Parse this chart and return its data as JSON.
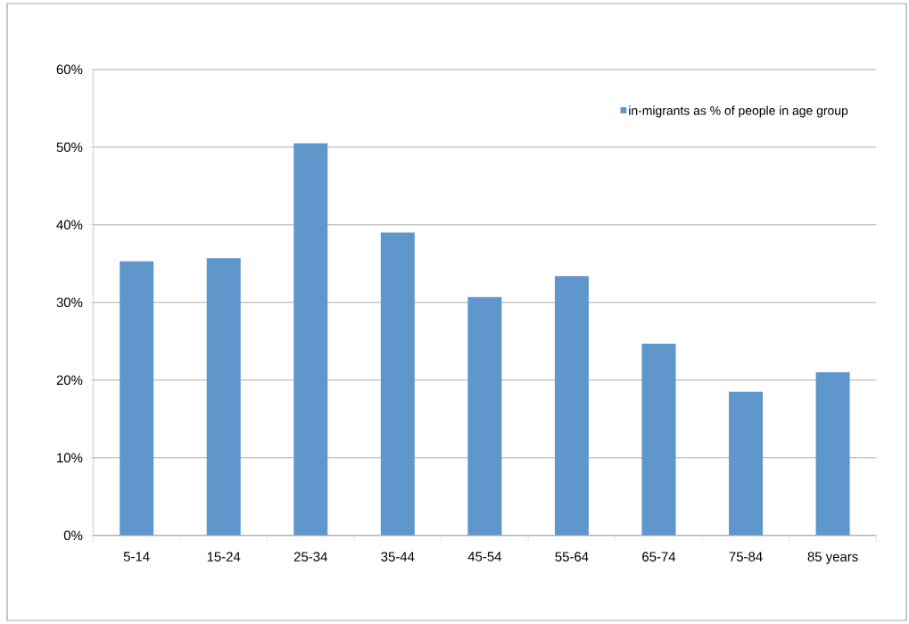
{
  "chart_data": {
    "type": "bar",
    "categories": [
      "5-14",
      "15-24",
      "25-34",
      "35-44",
      "45-54",
      "55-64",
      "65-74",
      "75-84",
      "85 years"
    ],
    "series": [
      {
        "name": "in-migrants as % of people in age group",
        "color": "#5f96cc",
        "values": [
          35.3,
          35.7,
          50.5,
          39.0,
          30.7,
          33.4,
          24.7,
          18.5,
          21.0
        ]
      }
    ],
    "ylim": [
      0,
      60
    ],
    "yticks": [
      {
        "value": 0,
        "label": "0%"
      },
      {
        "value": 10,
        "label": "10%"
      },
      {
        "value": 20,
        "label": "20%"
      },
      {
        "value": 30,
        "label": "30%"
      },
      {
        "value": 40,
        "label": "40%"
      },
      {
        "value": 50,
        "label": "50%"
      },
      {
        "value": 60,
        "label": "60%"
      }
    ],
    "grid": "y",
    "legend": "top right"
  }
}
